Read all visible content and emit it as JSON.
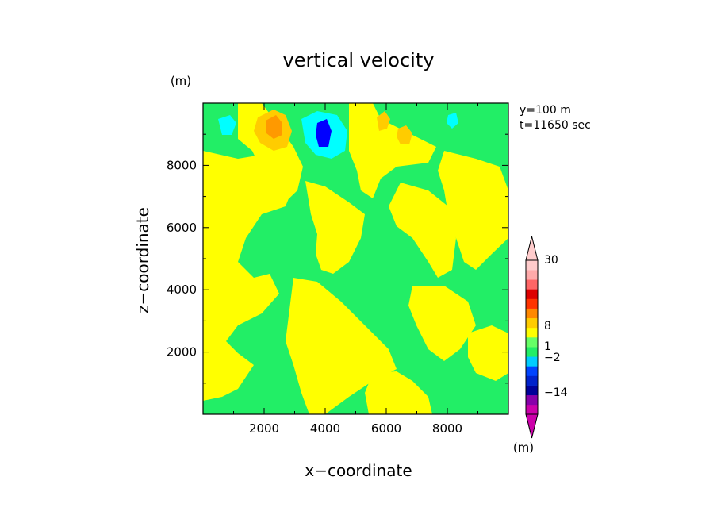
{
  "chart_data": {
    "type": "heatmap",
    "title": "vertical velocity",
    "xlabel": "x−coordinate",
    "ylabel": "z−coordinate",
    "x_unit": "(m)",
    "y_unit": "(m)",
    "colorbar_unit": "(m)",
    "annotations": [
      "y=100 m",
      "t=11650 sec"
    ],
    "xlim": [
      0,
      10000
    ],
    "ylim": [
      0,
      10000
    ],
    "xticks": [
      2000,
      4000,
      6000,
      8000
    ],
    "yticks": [
      2000,
      4000,
      6000,
      8000
    ],
    "xtick_labels": [
      "2000",
      "4000",
      "6000",
      "8000"
    ],
    "ytick_labels": [
      "2000",
      "4000",
      "6000",
      "8000"
    ],
    "colorbar": {
      "labels": [
        "30",
        "8",
        "1",
        "−2",
        "−14"
      ],
      "colors_bottom_to_top": [
        "#cc00aa",
        "#8800aa",
        "#000099",
        "#0022cc",
        "#0044ff",
        "#00ccff",
        "#22ee66",
        "#66ff66",
        "#ffff00",
        "#ffcc00",
        "#ff8800",
        "#ff3300",
        "#dd0000",
        "#ff6666",
        "#ffaaaa",
        "#ffcccc"
      ],
      "extend": "both"
    },
    "colors": {
      "near_zero_positive": "#ffff00",
      "near_zero_negative": "#22ee66",
      "updraft_weak": "#ffcc00",
      "updraft": "#ff9900",
      "downdraft": "#00ffff",
      "downdraft_strong": "#0000ff"
    }
  }
}
